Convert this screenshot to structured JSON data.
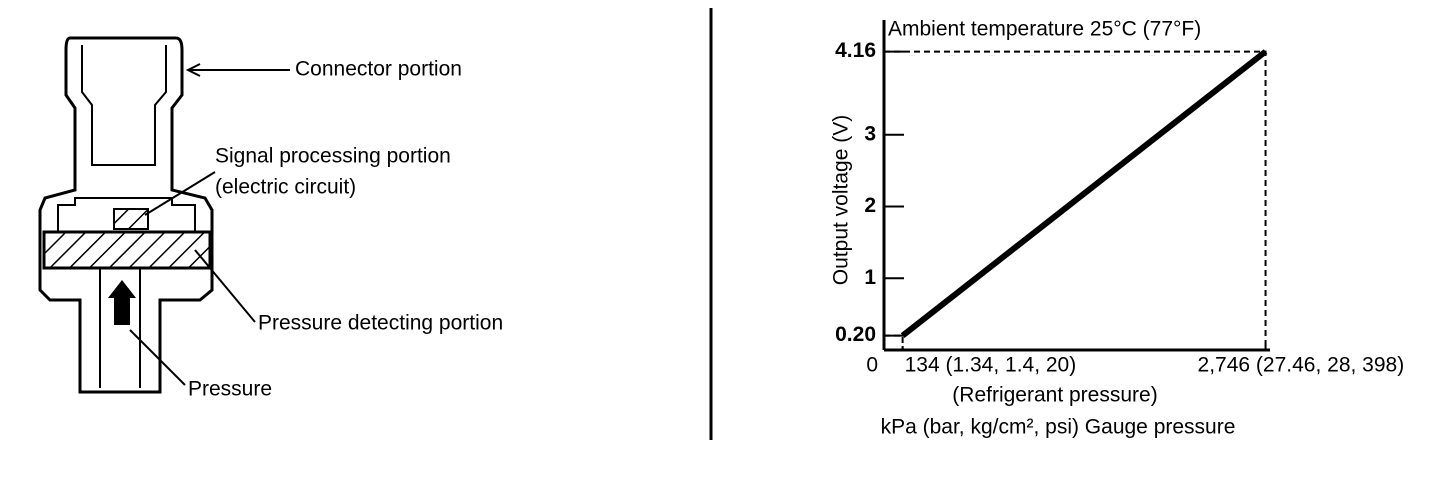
{
  "diagram": {
    "labels": [
      "Connector portion",
      "Signal processing portion",
      "(electric circuit)",
      "Pressure detecting portion",
      "Pressure"
    ]
  },
  "chart_data": {
    "type": "line",
    "title": "Ambient temperature 25°C (77°F)",
    "y_label": "Output voltage (V)",
    "x_label": "(Refrigerant pressure)",
    "x_unit_label": "kPa (bar, kg/cm², psi) Gauge pressure",
    "x": [
      134,
      2746
    ],
    "series": [
      {
        "color": "#000000",
        "values": [
          0.2,
          4.16
        ]
      }
    ],
    "xlim": [
      0,
      2850
    ],
    "ylim": [
      0,
      4.6
    ],
    "xticks": [
      0,
      {
        "value": 134,
        "label": "134 (1.34, 1.4, 20)"
      },
      {
        "value": 2746,
        "label": "2,746 (27.46, 28, 398)"
      }
    ],
    "yticks": [
      {
        "value": 0.2,
        "label": "0.20"
      },
      1,
      2,
      3,
      {
        "value": 4.16,
        "label": "4.16"
      }
    ]
  }
}
